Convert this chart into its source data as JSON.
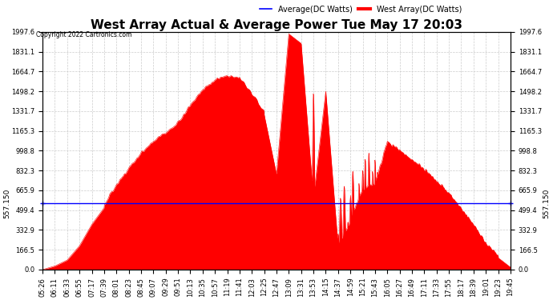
{
  "title": "West Array Actual & Average Power Tue May 17 20:03",
  "copyright": "Copyright 2022 Cartronics.com",
  "legend_avg": "Average(DC Watts)",
  "legend_west": "West Array(DC Watts)",
  "avg_value": 557.15,
  "ymax": 1997.6,
  "ymin": 0.0,
  "yticks": [
    0.0,
    166.5,
    332.9,
    499.4,
    665.9,
    832.3,
    998.8,
    1165.3,
    1331.7,
    1498.2,
    1664.7,
    1831.1,
    1997.6
  ],
  "avg_color": "blue",
  "west_color": "red",
  "fill_color": "red",
  "bg_color": "white",
  "grid_color": "#cccccc",
  "xtick_labels": [
    "05:26",
    "06:11",
    "06:33",
    "06:55",
    "07:17",
    "07:39",
    "08:01",
    "08:23",
    "08:45",
    "09:07",
    "09:29",
    "09:51",
    "10:13",
    "10:35",
    "10:57",
    "11:19",
    "11:41",
    "12:03",
    "12:25",
    "12:47",
    "13:09",
    "13:31",
    "13:53",
    "14:15",
    "14:37",
    "14:59",
    "15:21",
    "15:43",
    "16:05",
    "16:27",
    "16:49",
    "17:11",
    "17:33",
    "17:55",
    "18:17",
    "18:39",
    "19:01",
    "19:23",
    "19:45"
  ],
  "power_values": [
    0,
    30,
    80,
    200,
    380,
    520,
    680,
    820,
    950,
    1050,
    1120,
    1200,
    1350,
    1480,
    1560,
    1600,
    1580,
    1450,
    1300,
    800,
    1980,
    1900,
    600,
    1500,
    200,
    400,
    650,
    700,
    1050,
    980,
    900,
    820,
    720,
    620,
    490,
    350,
    200,
    100,
    20
  ],
  "spike_data": [
    [
      20,
      1980
    ],
    [
      20.1,
      1750
    ],
    [
      20.2,
      1600
    ],
    [
      20.3,
      1200
    ],
    [
      20.5,
      900
    ],
    [
      20.7,
      400
    ],
    [
      21.0,
      1900
    ],
    [
      21.2,
      600
    ],
    [
      21.5,
      800
    ],
    [
      21.7,
      300
    ],
    [
      22.0,
      1480
    ],
    [
      22.2,
      200
    ],
    [
      22.5,
      600
    ],
    [
      22.8,
      900
    ],
    [
      23.0,
      1400
    ],
    [
      23.3,
      200
    ],
    [
      23.5,
      700
    ],
    [
      23.8,
      400
    ],
    [
      24.0,
      300
    ],
    [
      24.2,
      600
    ],
    [
      24.5,
      700
    ],
    [
      24.8,
      400
    ],
    [
      25.0,
      600
    ],
    [
      25.2,
      800
    ],
    [
      25.5,
      500
    ],
    [
      25.7,
      700
    ],
    [
      26.0,
      800
    ],
    [
      26.2,
      900
    ],
    [
      26.5,
      950
    ],
    [
      26.8,
      800
    ],
    [
      27.0,
      900
    ],
    [
      27.2,
      800
    ],
    [
      27.5,
      750
    ],
    [
      27.8,
      700
    ],
    [
      28.0,
      850
    ],
    [
      28.2,
      700
    ],
    [
      28.5,
      600
    ],
    [
      28.7,
      500
    ]
  ],
  "title_fontsize": 11,
  "label_fontsize": 7,
  "tick_fontsize": 6
}
